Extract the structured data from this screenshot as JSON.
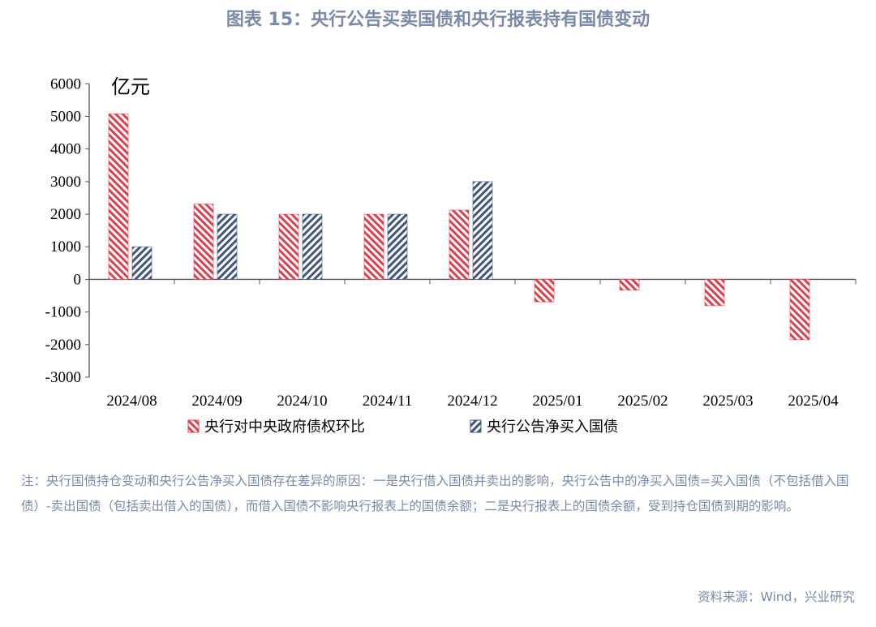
{
  "title": "图表 15：央行公告买卖国债和央行报表持有国债变动",
  "note": "注：央行国债持仓变动和央行公告净买入国债存在差异的原因：一是央行借入国债并卖出的影响，央行公告中的净买入国债=买入国债（不包括借入国债）-卖出国债（包括卖出借入的国债），而借入国债不影响央行报表上的国债余额；二是央行报表上的国债余额，受到持仓国债到期的影响。",
  "source": "资料来源：Wind，兴业研究",
  "chart_data": {
    "type": "bar",
    "unit_label": "亿元",
    "categories": [
      "2024/08",
      "2024/09",
      "2024/10",
      "2024/11",
      "2024/12",
      "2025/01",
      "2025/02",
      "2025/03",
      "2025/04"
    ],
    "series": [
      {
        "name": "央行对中央政府债权环比",
        "color": "#d9434f",
        "pattern": "backslash",
        "values": [
          5080,
          2310,
          2000,
          2000,
          2125,
          -690,
          -330,
          -805,
          -1850
        ]
      },
      {
        "name": "央行公告净买入国债",
        "color": "#44577a",
        "pattern": "slash",
        "values": [
          1000,
          2000,
          2000,
          2000,
          3000,
          null,
          null,
          null,
          null
        ]
      }
    ],
    "ylim": [
      -3000,
      6000
    ],
    "yticks": [
      6000,
      5000,
      4000,
      3000,
      2000,
      1000,
      0,
      -1000,
      -2000,
      -3000
    ],
    "grid": false,
    "legend_position": "bottom"
  }
}
